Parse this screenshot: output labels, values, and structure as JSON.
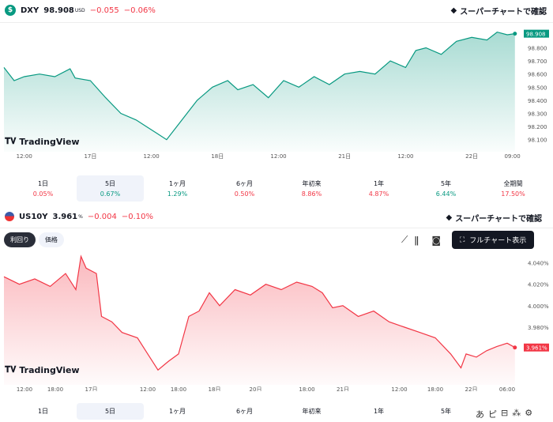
{
  "dxy": {
    "symbol": "DXY",
    "price": "98.908",
    "unit": "USD",
    "change": "−0.055",
    "change_pct": "−0.06%",
    "supercharts": "スーパーチャートで確認",
    "last_label": "98.908"
  },
  "us10y": {
    "symbol": "US10Y",
    "price": "3.961",
    "unit": "%",
    "change": "−0.004",
    "change_pct": "−0.10%",
    "supercharts": "スーパーチャートで確認",
    "last_label": "3.961%",
    "toggle": [
      "利回り",
      "価格"
    ],
    "fullchart": "フルチャート表示"
  },
  "brand": "TradingView",
  "perf_tabs": [
    {
      "label": "1日",
      "value": "0.05%",
      "color": "#f23645"
    },
    {
      "label": "5日",
      "value": "0.67%",
      "color": "#089981",
      "selected": true
    },
    {
      "label": "1ヶ月",
      "value": "1.29%",
      "color": "#089981"
    },
    {
      "label": "6ヶ月",
      "value": "0.50%",
      "color": "#f23645"
    },
    {
      "label": "年初来",
      "value": "8.86%",
      "color": "#f23645"
    },
    {
      "label": "1年",
      "value": "4.87%",
      "color": "#f23645"
    },
    {
      "label": "5年",
      "value": "6.44%",
      "color": "#089981"
    },
    {
      "label": "全期間",
      "value": "17.50%",
      "color": "#f23645"
    }
  ],
  "bottom_tabs": [
    "1日",
    "5日",
    "1ヶ月",
    "6ヶ月",
    "年初来",
    "1年",
    "5年"
  ],
  "bottom_icons": [
    "あ",
    "ピ",
    "⊟",
    "⁂",
    "⚙"
  ],
  "chart_data": [
    {
      "type": "area",
      "title": "DXY",
      "color": "#089981",
      "ylim": [
        98.08,
        98.96
      ],
      "yticks": [
        "98.800",
        "98.700",
        "98.600",
        "98.500",
        "98.400",
        "98.300",
        "98.200",
        "98.100"
      ],
      "ytick_values": [
        98.8,
        98.7,
        98.6,
        98.5,
        98.4,
        98.3,
        98.2,
        98.1
      ],
      "xticks": [
        {
          "label": "12:00",
          "x": 4
        },
        {
          "label": "17日",
          "x": 17
        },
        {
          "label": "12:00",
          "x": 29
        },
        {
          "label": "18日",
          "x": 42
        },
        {
          "label": "12:00",
          "x": 54
        },
        {
          "label": "21日",
          "x": 67
        },
        {
          "label": "12:00",
          "x": 79
        },
        {
          "label": "22日",
          "x": 92
        },
        {
          "label": "09:00",
          "x": 100
        }
      ],
      "xlim": [
        0,
        101
      ],
      "x": [
        0,
        2,
        4,
        7,
        10,
        13,
        14,
        17,
        20,
        23,
        26,
        28,
        30,
        32,
        34,
        36,
        38,
        41,
        44,
        46,
        49,
        52,
        55,
        58,
        61,
        64,
        67,
        70,
        73,
        76,
        79,
        81,
        83,
        86,
        89,
        92,
        95,
        97,
        99,
        100.5
      ],
      "values": [
        98.65,
        98.55,
        98.58,
        98.6,
        98.58,
        98.64,
        98.57,
        98.55,
        98.42,
        98.3,
        98.25,
        98.2,
        98.15,
        98.1,
        98.2,
        98.3,
        98.4,
        98.5,
        98.55,
        98.48,
        98.52,
        98.42,
        98.55,
        98.5,
        98.58,
        98.52,
        98.6,
        98.62,
        98.6,
        98.7,
        98.65,
        98.78,
        98.8,
        98.75,
        98.85,
        98.88,
        98.86,
        98.92,
        98.9,
        98.908
      ]
    },
    {
      "type": "area",
      "title": "US10Y",
      "color": "#f23645",
      "ylim": [
        3.935,
        4.05
      ],
      "yticks": [
        "4.040%",
        "4.020%",
        "4.000%",
        "3.980%"
      ],
      "ytick_values": [
        4.04,
        4.02,
        4.0,
        3.98
      ],
      "xticks": [
        {
          "label": "12:00",
          "x": 4
        },
        {
          "label": "18:00",
          "x": 10
        },
        {
          "label": "17日",
          "x": 17
        },
        {
          "label": "12:00",
          "x": 28
        },
        {
          "label": "18:00",
          "x": 34
        },
        {
          "label": "18日",
          "x": 41
        },
        {
          "label": "20日",
          "x": 49
        },
        {
          "label": "18:00",
          "x": 59
        },
        {
          "label": "21日",
          "x": 66
        },
        {
          "label": "12:00",
          "x": 77
        },
        {
          "label": "18:00",
          "x": 84
        },
        {
          "label": "22日",
          "x": 91
        },
        {
          "label": "06:00",
          "x": 98
        }
      ],
      "xlim": [
        0,
        100
      ],
      "x": [
        0,
        3,
        6,
        9,
        12,
        14,
        15,
        16,
        18,
        19,
        21,
        23,
        26,
        28,
        30,
        32,
        34,
        36,
        38,
        40,
        42,
        45,
        48,
        51,
        54,
        57,
        60,
        62,
        64,
        66,
        69,
        72,
        75,
        78,
        81,
        84,
        87,
        89,
        90,
        92,
        94,
        96,
        98,
        99.5
      ],
      "values": [
        4.027,
        4.02,
        4.025,
        4.018,
        4.03,
        4.015,
        4.046,
        4.035,
        4.03,
        3.99,
        3.985,
        3.975,
        3.97,
        3.955,
        3.94,
        3.948,
        3.955,
        3.99,
        3.995,
        4.012,
        4.0,
        4.015,
        4.01,
        4.02,
        4.015,
        4.022,
        4.018,
        4.012,
        3.998,
        4.0,
        3.99,
        3.995,
        3.985,
        3.98,
        3.975,
        3.97,
        3.955,
        3.942,
        3.955,
        3.952,
        3.958,
        3.962,
        3.965,
        3.961
      ]
    }
  ]
}
